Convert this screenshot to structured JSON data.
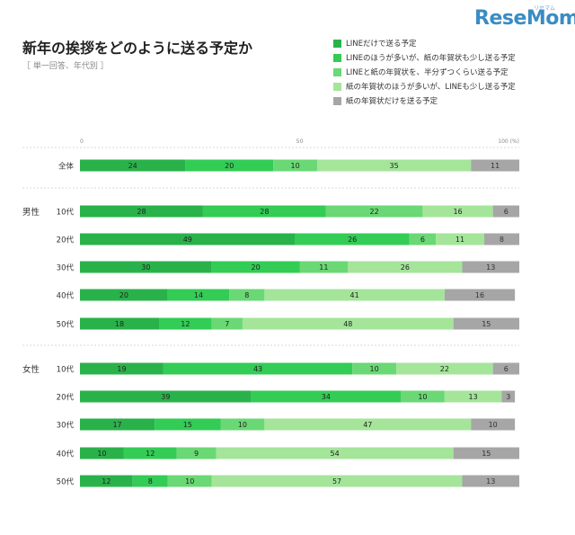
{
  "brand": {
    "logo_text": "ReseMom",
    "logo_tag": "リセマム"
  },
  "chart_data": {
    "type": "bar",
    "orientation": "horizontal",
    "stacked": true,
    "title": "新年の挨拶をどのように送る予定か",
    "subtitle": "［ 単一回答、年代別 ］",
    "xlim": [
      0,
      100
    ],
    "x_ticks": [
      "0",
      "50",
      "100 (%)"
    ],
    "grid": false,
    "legend_position": "top-right",
    "groups": [
      {
        "name": "",
        "rows": [
          "全体"
        ]
      },
      {
        "name": "男性",
        "rows": [
          "10代",
          "20代",
          "30代",
          "40代",
          "50代"
        ]
      },
      {
        "name": "女性",
        "rows": [
          "10代",
          "20代",
          "30代",
          "40代",
          "50代"
        ]
      }
    ],
    "categories": [
      "全体",
      "男性 10代",
      "男性 20代",
      "男性 30代",
      "男性 40代",
      "男性 50代",
      "女性 10代",
      "女性 20代",
      "女性 30代",
      "女性 40代",
      "女性 50代"
    ],
    "series": [
      {
        "name": "LINEだけで送る予定",
        "color": "#2ab24a",
        "values": [
          24,
          28,
          49,
          30,
          20,
          18,
          19,
          39,
          17,
          10,
          12
        ]
      },
      {
        "name": "LINEのほうが多いが、紙の年賀状も少し送る予定",
        "color": "#33cc55",
        "values": [
          20,
          28,
          26,
          20,
          14,
          12,
          43,
          34,
          15,
          12,
          8
        ]
      },
      {
        "name": "LINEと紙の年賀状を、半分ずつくらい送る予定",
        "color": "#6ad874",
        "values": [
          10,
          22,
          6,
          11,
          8,
          7,
          10,
          10,
          10,
          9,
          10
        ]
      },
      {
        "name": "紙の年賀状のほうが多いが、LINEも少し送る予定",
        "color": "#a4e59a",
        "values": [
          35,
          16,
          11,
          26,
          41,
          48,
          22,
          13,
          47,
          54,
          57
        ]
      },
      {
        "name": "紙の年賀状だけを送る予定",
        "color": "#a6a6a6",
        "values": [
          11,
          6,
          8,
          13,
          16,
          15,
          6,
          3,
          10,
          15,
          13
        ]
      }
    ]
  }
}
